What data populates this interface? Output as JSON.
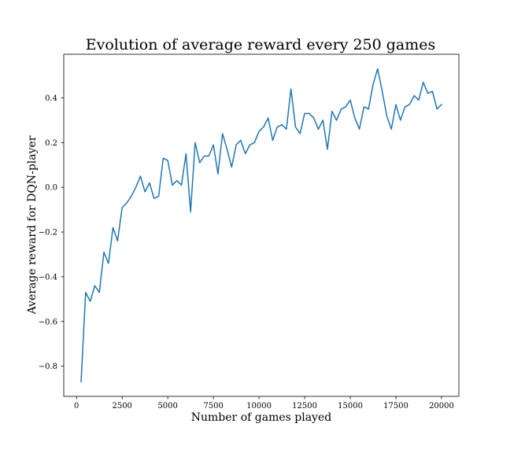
{
  "chart_data": {
    "type": "line",
    "title": "Evolution of average reward every 250 games",
    "xlabel": "Number of games played",
    "ylabel": "Average reward for DQN-player",
    "xlim": [
      -700,
      20950
    ],
    "ylim": [
      -0.935,
      0.595
    ],
    "xticks": [
      0,
      2500,
      5000,
      7500,
      10000,
      12500,
      15000,
      17500,
      20000
    ],
    "yticks": [
      -0.8,
      -0.6,
      -0.4,
      -0.2,
      0.0,
      0.2,
      0.4
    ],
    "xtick_labels": [
      "0",
      "2500",
      "5000",
      "7500",
      "10000",
      "12500",
      "15000",
      "17500",
      "20000"
    ],
    "ytick_labels": [
      "−0.8",
      "−0.6",
      "−0.4",
      "−0.2",
      "0.0",
      "0.2",
      "0.4"
    ],
    "grid": false,
    "color": "#1f77b4",
    "series": [
      {
        "x": [
          250,
          500,
          750,
          1000,
          1250,
          1500,
          1750,
          2000,
          2250,
          2500,
          2750,
          3000,
          3250,
          3500,
          3750,
          4000,
          4250,
          4500,
          4750,
          5000,
          5250,
          5500,
          5750,
          6000,
          6250,
          6500,
          6750,
          7000,
          7250,
          7500,
          7750,
          8000,
          8250,
          8500,
          8750,
          9000,
          9250,
          9500,
          9750,
          10000,
          10250,
          10500,
          10750,
          11000,
          11250,
          11500,
          11750,
          12000,
          12250,
          12500,
          12750,
          13000,
          13250,
          13500,
          13750,
          14000,
          14250,
          14500,
          14750,
          15000,
          15250,
          15500,
          15750,
          16000,
          16250,
          16500,
          16750,
          17000,
          17250,
          17500,
          17750,
          18000,
          18250,
          18500,
          18750,
          19000,
          19250,
          19500,
          19750,
          20000
        ],
        "y": [
          -0.87,
          -0.47,
          -0.51,
          -0.44,
          -0.47,
          -0.29,
          -0.34,
          -0.18,
          -0.24,
          -0.09,
          -0.07,
          -0.04,
          0.0,
          0.05,
          -0.02,
          0.02,
          -0.05,
          -0.04,
          0.13,
          0.12,
          0.01,
          0.03,
          0.01,
          0.15,
          -0.11,
          0.2,
          0.11,
          0.14,
          0.14,
          0.19,
          0.06,
          0.24,
          0.17,
          0.09,
          0.19,
          0.21,
          0.15,
          0.19,
          0.2,
          0.25,
          0.27,
          0.31,
          0.21,
          0.27,
          0.28,
          0.26,
          0.44,
          0.27,
          0.24,
          0.33,
          0.33,
          0.31,
          0.26,
          0.3,
          0.17,
          0.34,
          0.3,
          0.35,
          0.36,
          0.39,
          0.31,
          0.26,
          0.36,
          0.35,
          0.46,
          0.53,
          0.43,
          0.32,
          0.26,
          0.37,
          0.3,
          0.36,
          0.37,
          0.41,
          0.39,
          0.47,
          0.42,
          0.43,
          0.35,
          0.37
        ]
      }
    ]
  }
}
